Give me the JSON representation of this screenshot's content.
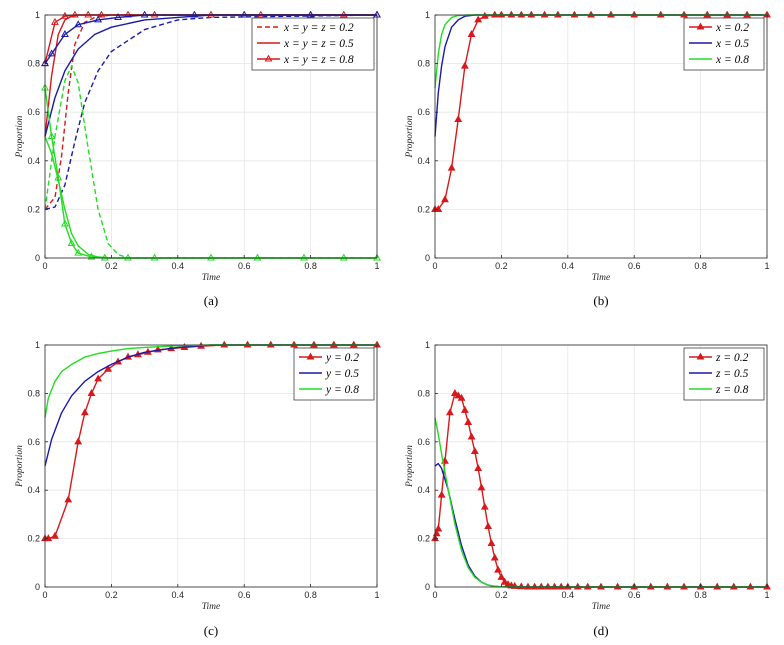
{
  "chart_data": [
    {
      "caption": "(a)",
      "type": "line",
      "xlabel": "Time",
      "ylabel": "Proportion",
      "xlim": [
        0,
        1
      ],
      "ylim": [
        0,
        1
      ],
      "xticks": [
        "0",
        "0.2",
        "0.4",
        "0.6",
        "0.8",
        "1"
      ],
      "yticks": [
        "0",
        "0.2",
        "0.4",
        "0.6",
        "0.8",
        "1"
      ],
      "grid": true,
      "legend_position": "top-right",
      "legend": [
        {
          "label": "x = y = z = 0.2",
          "style": "dashed"
        },
        {
          "label": "x = y = z = 0.5",
          "style": "solid"
        },
        {
          "label": "x = y = z = 0.8",
          "style": "solid-triangle"
        }
      ],
      "series": [
        {
          "color": "#d7191c",
          "style": "dashed",
          "x": [
            0,
            0.03,
            0.05,
            0.07,
            0.09,
            0.12,
            0.15,
            0.2,
            0.3,
            1
          ],
          "y": [
            0.2,
            0.25,
            0.42,
            0.68,
            0.88,
            0.97,
            0.99,
            1,
            1,
            1
          ]
        },
        {
          "color": "#1a1aa8",
          "style": "dashed",
          "x": [
            0,
            0.03,
            0.06,
            0.09,
            0.12,
            0.16,
            0.2,
            0.3,
            0.4,
            0.5,
            1
          ],
          "y": [
            0.2,
            0.21,
            0.3,
            0.48,
            0.64,
            0.77,
            0.85,
            0.94,
            0.98,
            0.99,
            1
          ]
        },
        {
          "color": "#22dd22",
          "style": "dashed",
          "x": [
            0,
            0.03,
            0.06,
            0.08,
            0.1,
            0.13,
            0.16,
            0.19,
            0.22,
            0.25,
            1
          ],
          "y": [
            0.2,
            0.5,
            0.73,
            0.79,
            0.72,
            0.45,
            0.2,
            0.06,
            0.015,
            0,
            0
          ]
        },
        {
          "color": "#d7191c",
          "style": "solid",
          "x": [
            0,
            0.02,
            0.04,
            0.06,
            0.08,
            0.1,
            0.15,
            1
          ],
          "y": [
            0.5,
            0.75,
            0.92,
            0.98,
            0.995,
            1,
            1,
            1
          ]
        },
        {
          "color": "#1a1aa8",
          "style": "solid",
          "x": [
            0,
            0.03,
            0.06,
            0.1,
            0.15,
            0.2,
            0.3,
            0.4,
            0.5,
            1
          ],
          "y": [
            0.5,
            0.66,
            0.77,
            0.86,
            0.92,
            0.95,
            0.98,
            0.99,
            1,
            1
          ]
        },
        {
          "color": "#22dd22",
          "style": "solid",
          "x": [
            0,
            0.02,
            0.04,
            0.06,
            0.08,
            0.1,
            0.13,
            0.16,
            0.2,
            1
          ],
          "y": [
            0.5,
            0.43,
            0.32,
            0.2,
            0.1,
            0.05,
            0.015,
            0.004,
            0,
            0
          ]
        },
        {
          "color": "#d7191c",
          "style": "solid-triangle",
          "x": [
            0,
            0.03,
            0.06,
            0.09,
            0.13,
            0.17,
            0.25,
            0.33,
            0.5,
            0.65,
            0.8,
            0.9,
            1
          ],
          "y": [
            0.8,
            0.97,
            0.995,
            1,
            1,
            1,
            1,
            1,
            1,
            1,
            1,
            1,
            1
          ]
        },
        {
          "color": "#1a1aa8",
          "style": "solid-triangle",
          "x": [
            0,
            0.02,
            0.06,
            0.1,
            0.16,
            0.22,
            0.3,
            0.45,
            0.6,
            0.8,
            1
          ],
          "y": [
            0.8,
            0.84,
            0.92,
            0.96,
            0.98,
            0.99,
            1,
            1,
            1,
            1,
            1
          ]
        },
        {
          "color": "#22dd22",
          "style": "solid-triangle",
          "x": [
            0,
            0.02,
            0.04,
            0.06,
            0.08,
            0.1,
            0.14,
            0.18,
            0.25,
            0.33,
            0.5,
            0.64,
            0.78,
            0.9,
            1
          ],
          "y": [
            0.7,
            0.5,
            0.33,
            0.14,
            0.06,
            0.02,
            0.004,
            0,
            0,
            0,
            0,
            0,
            0,
            0,
            0
          ]
        }
      ]
    },
    {
      "caption": "(b)",
      "type": "line",
      "xlabel": "Time",
      "ylabel": "Proportion",
      "xlim": [
        0,
        1
      ],
      "ylim": [
        0,
        1
      ],
      "xticks": [
        "0",
        "0.2",
        "0.4",
        "0.6",
        "0.8",
        "1"
      ],
      "yticks": [
        "0",
        "0.2",
        "0.4",
        "0.6",
        "0.8",
        "1"
      ],
      "grid": true,
      "legend_position": "top-right",
      "series": [
        {
          "name": "x = 0.2",
          "color": "#d7191c",
          "marker": "triangle",
          "x": [
            0,
            0.01,
            0.03,
            0.05,
            0.07,
            0.09,
            0.11,
            0.13,
            0.15,
            0.18,
            0.2,
            0.23,
            0.26,
            0.29,
            0.33,
            0.37,
            0.42,
            0.47,
            0.53,
            0.6,
            0.68,
            0.75,
            0.82,
            0.88,
            0.94,
            1
          ],
          "y": [
            0.2,
            0.2,
            0.24,
            0.37,
            0.57,
            0.79,
            0.92,
            0.98,
            0.995,
            1,
            1,
            1,
            1,
            1,
            1,
            1,
            1,
            1,
            1,
            1,
            1,
            1,
            1,
            1,
            1,
            1
          ]
        },
        {
          "name": "x = 0.5",
          "color": "#1a1aa8",
          "x": [
            0,
            0.01,
            0.02,
            0.03,
            0.05,
            0.07,
            0.09,
            0.12,
            0.15,
            1
          ],
          "y": [
            0.5,
            0.68,
            0.79,
            0.87,
            0.95,
            0.98,
            0.995,
            1,
            1,
            1
          ]
        },
        {
          "name": "x = 0.8",
          "color": "#22dd22",
          "x": [
            0,
            0.01,
            0.02,
            0.03,
            0.05,
            0.07,
            0.1,
            1
          ],
          "y": [
            0.7,
            0.84,
            0.92,
            0.96,
            0.99,
            0.998,
            1,
            1
          ]
        }
      ]
    },
    {
      "caption": "(c)",
      "type": "line",
      "xlabel": "Time",
      "ylabel": "Proportion",
      "xlim": [
        0,
        1
      ],
      "ylim": [
        0,
        1
      ],
      "xticks": [
        "0",
        "0.2",
        "0.4",
        "0.6",
        "0.8",
        "1"
      ],
      "yticks": [
        "0",
        "0.2",
        "0.4",
        "0.6",
        "0.8",
        "1"
      ],
      "grid": true,
      "legend_position": "top-right",
      "series": [
        {
          "name": "y = 0.2",
          "color": "#d7191c",
          "marker": "triangle",
          "x": [
            0,
            0.01,
            0.03,
            0.07,
            0.1,
            0.12,
            0.14,
            0.16,
            0.19,
            0.22,
            0.25,
            0.28,
            0.31,
            0.34,
            0.38,
            0.42,
            0.47,
            0.54,
            0.61,
            0.68,
            0.75,
            0.81,
            0.87,
            0.93,
            1
          ],
          "y": [
            0.2,
            0.2,
            0.21,
            0.36,
            0.6,
            0.72,
            0.8,
            0.86,
            0.9,
            0.93,
            0.95,
            0.96,
            0.97,
            0.98,
            0.985,
            0.99,
            0.995,
            1,
            1,
            1,
            1,
            1,
            1,
            1,
            1
          ]
        },
        {
          "name": "y = 0.5",
          "color": "#1a1aa8",
          "x": [
            0,
            0.02,
            0.05,
            0.08,
            0.12,
            0.16,
            0.2,
            0.25,
            0.3,
            0.35,
            0.4,
            0.5,
            1
          ],
          "y": [
            0.5,
            0.61,
            0.72,
            0.79,
            0.85,
            0.89,
            0.92,
            0.95,
            0.97,
            0.98,
            0.99,
            1,
            1
          ]
        },
        {
          "name": "y = 0.8",
          "color": "#22dd22",
          "x": [
            0,
            0.01,
            0.03,
            0.05,
            0.08,
            0.12,
            0.16,
            0.2,
            0.25,
            0.3,
            0.4,
            0.5,
            1
          ],
          "y": [
            0.7,
            0.78,
            0.85,
            0.89,
            0.92,
            0.95,
            0.965,
            0.975,
            0.985,
            0.99,
            0.997,
            1,
            1
          ]
        }
      ]
    },
    {
      "caption": "(d)",
      "type": "line",
      "xlabel": "Time",
      "ylabel": "Proportion",
      "xlim": [
        0,
        1
      ],
      "ylim": [
        0,
        1
      ],
      "xticks": [
        "0",
        "0.2",
        "0.4",
        "0.6",
        "0.8",
        "1"
      ],
      "yticks": [
        "0",
        "0.2",
        "0.4",
        "0.6",
        "0.8",
        "1"
      ],
      "grid": true,
      "legend_position": "top-right",
      "series": [
        {
          "name": "z = 0.2",
          "color": "#d7191c",
          "marker": "triangle",
          "x": [
            0,
            0.005,
            0.01,
            0.02,
            0.03,
            0.045,
            0.06,
            0.07,
            0.08,
            0.09,
            0.1,
            0.11,
            0.12,
            0.13,
            0.14,
            0.15,
            0.16,
            0.17,
            0.18,
            0.19,
            0.2,
            0.21,
            0.22,
            0.23,
            0.24,
            0.26,
            0.28,
            0.3,
            0.32,
            0.34,
            0.36,
            0.38,
            0.4,
            0.43,
            0.46,
            0.5,
            0.55,
            0.6,
            0.65,
            0.7,
            0.75,
            0.8,
            0.85,
            0.9,
            0.95,
            1
          ],
          "y": [
            0.2,
            0.22,
            0.24,
            0.38,
            0.52,
            0.72,
            0.8,
            0.79,
            0.78,
            0.73,
            0.68,
            0.62,
            0.56,
            0.49,
            0.41,
            0.33,
            0.25,
            0.18,
            0.12,
            0.07,
            0.04,
            0.02,
            0.01,
            0.005,
            0.003,
            0.001,
            0,
            0,
            0,
            0,
            0,
            0,
            0,
            0,
            0,
            0,
            0,
            0,
            0,
            0,
            0,
            0,
            0,
            0,
            0,
            0
          ]
        },
        {
          "name": "z = 0.5",
          "color": "#1a1aa8",
          "x": [
            0,
            0.01,
            0.02,
            0.04,
            0.06,
            0.08,
            0.1,
            0.12,
            0.14,
            0.16,
            0.18,
            0.2,
            0.25,
            1
          ],
          "y": [
            0.5,
            0.51,
            0.49,
            0.4,
            0.28,
            0.17,
            0.09,
            0.045,
            0.02,
            0.008,
            0.003,
            0.001,
            0,
            0
          ]
        },
        {
          "name": "z = 0.8",
          "color": "#22dd22",
          "x": [
            0,
            0.01,
            0.02,
            0.04,
            0.06,
            0.08,
            0.1,
            0.12,
            0.14,
            0.16,
            0.18,
            0.2,
            0.25,
            1
          ],
          "y": [
            0.7,
            0.63,
            0.55,
            0.4,
            0.26,
            0.15,
            0.08,
            0.04,
            0.02,
            0.008,
            0.003,
            0.001,
            0,
            0
          ]
        }
      ]
    }
  ]
}
